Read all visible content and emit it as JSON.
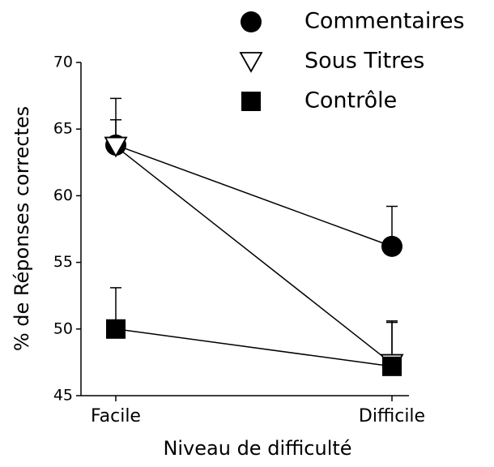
{
  "chart_data": {
    "type": "line",
    "x_label": "Niveau de difficulté",
    "y_label": "% de Réponses correctes",
    "categories": [
      "Facile",
      "Difficile"
    ],
    "ylim": [
      45,
      70
    ],
    "yticks": [
      45,
      50,
      55,
      60,
      65,
      70
    ],
    "series": [
      {
        "name": "Commentaires",
        "color": "#000000",
        "marker": "circle",
        "values": [
          63.8,
          56.2
        ],
        "errors": [
          3.5,
          3.0
        ]
      },
      {
        "name": "Sous Titres",
        "color": "#000000",
        "marker": "triangle-down",
        "values": [
          63.7,
          47.4
        ],
        "errors": [
          2.0,
          3.2
        ]
      },
      {
        "name": "Contrôle",
        "color": "#000000",
        "marker": "square",
        "values": [
          50.0,
          47.2
        ],
        "errors": [
          3.1,
          3.3
        ]
      }
    ]
  }
}
